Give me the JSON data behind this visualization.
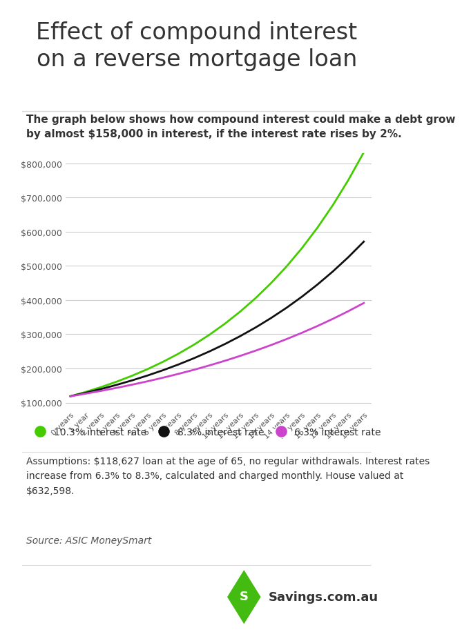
{
  "title": "Effect of compound interest\non a reverse mortgage loan",
  "subtitle": "The graph below shows how compound interest could make a debt grow\nby almost $158,000 in interest, if the interest rate rises by 2%.",
  "principal": 118627,
  "rates": [
    0.063,
    0.083,
    0.103
  ],
  "years": [
    0,
    1,
    2,
    3,
    4,
    5,
    6,
    7,
    8,
    9,
    10,
    11,
    12,
    13,
    14,
    15,
    16,
    17,
    18,
    19
  ],
  "x_labels": [
    "0 years",
    "1 year",
    "2 years",
    "3 years",
    "4 years",
    "5 years",
    "6 years",
    "7 years",
    "8 years",
    "9 years",
    "10 years",
    "11 years",
    "12 years",
    "13 years",
    "14 years",
    "15 years",
    "16 years",
    "17 years",
    "18 years",
    "19 years"
  ],
  "line_colors": [
    "#44cc00",
    "#111111",
    "#cc44cc"
  ],
  "line_labels": [
    "10.3% interest rate",
    "8.3% interest rate",
    "6.3% interest rate"
  ],
  "y_ticks": [
    100000,
    200000,
    300000,
    400000,
    500000,
    600000,
    700000,
    800000
  ],
  "ylim": [
    80000,
    830000
  ],
  "assumptions": "Assumptions: $118,627 loan at the age of 65, no regular withdrawals. Interest rates\nincrease from 6.3% to 8.3%, calculated and charged monthly. House valued at\n$632,598.",
  "source": "Source: ASIC MoneySmart",
  "background_color": "#ffffff",
  "text_color": "#444444",
  "grid_color": "#cccccc",
  "title_fontsize": 24,
  "subtitle_fontsize": 11,
  "legend_fontsize": 10,
  "assumptions_fontsize": 10,
  "source_fontsize": 10
}
